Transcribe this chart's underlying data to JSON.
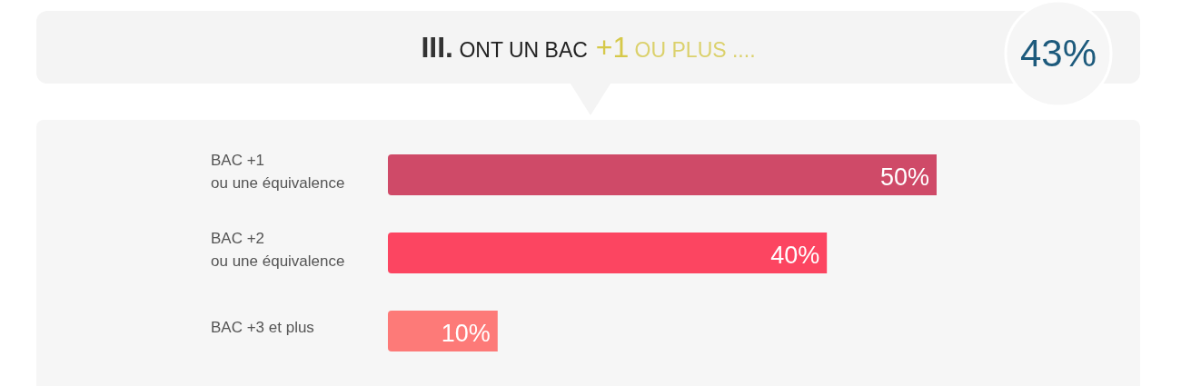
{
  "chart_data": {
    "type": "bar",
    "orientation": "horizontal",
    "title": "III. ONT UN BAC +1 OU PLUS ....",
    "categories": [
      "BAC +1\nou une équivalence",
      "BAC +2\nou une équivalence",
      "BAC +3 et plus"
    ],
    "values": [
      50,
      40,
      10
    ],
    "value_labels": [
      "50%",
      "40%",
      "10%"
    ],
    "colors": [
      "#cf4a68",
      "#fc4561",
      "#fd7a78"
    ],
    "annotations": [
      "43%"
    ]
  }
}
